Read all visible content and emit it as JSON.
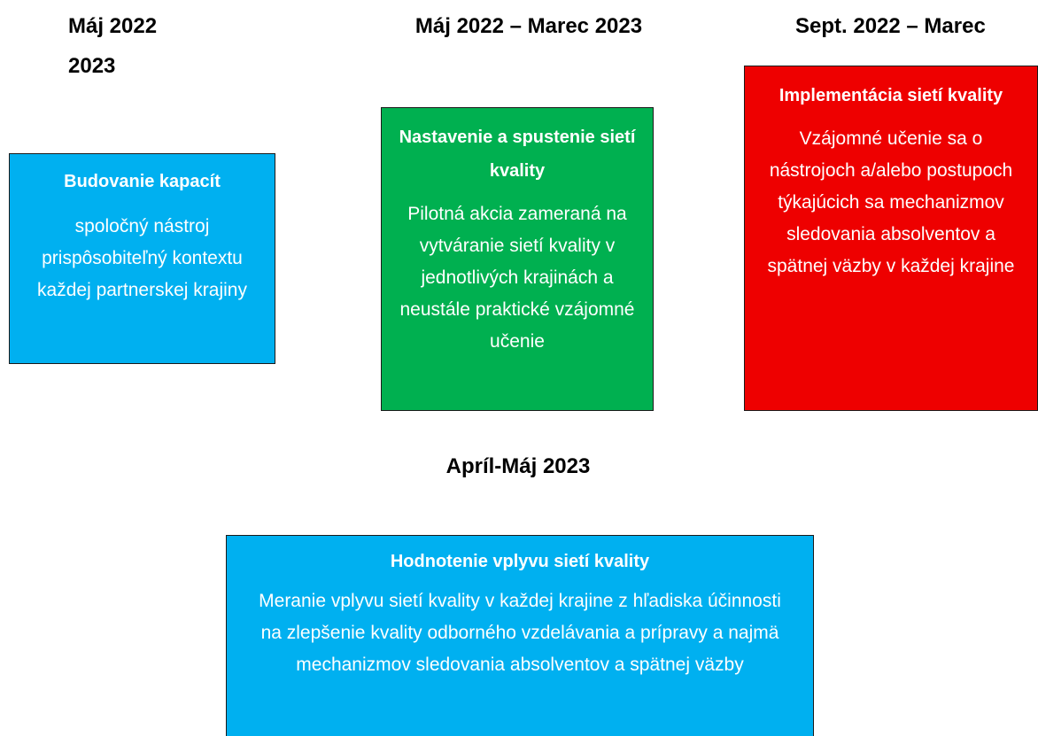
{
  "phases": [
    {
      "date_lines": [
        "Máj 2022",
        "2023"
      ],
      "title": "Budovanie kapacít",
      "description": "spoločný nástroj prispôsobiteľný kontextu každej partnerskej krajiny"
    },
    {
      "date_lines": [
        "Máj 2022 – Marec 2023"
      ],
      "title": "Nastavenie a spustenie sietí kvality",
      "description": "Pilotná akcia zameraná na vytváranie sietí kvality v jednotlivých krajinách a neustále praktické vzájomné učenie"
    },
    {
      "date_lines": [
        "Sept. 2022 – Marec"
      ],
      "title": "Implementácia sietí kvality",
      "description": "Vzájomné učenie sa o nástrojoch a/alebo postupoch týkajúcich sa mechanizmov sledovania absolventov a spätnej väzby v každej krajine"
    },
    {
      "date_lines": [
        "Apríl-Máj 2023"
      ],
      "title": "Hodnotenie vplyvu sietí kvality",
      "description": "Meranie vplyvu sietí kvality v každej krajine z hľadiska účinnosti na zlepšenie kvality odborného vzdelávania a prípravy a najmä mechanizmov sledovania absolventov a spätnej väzby"
    }
  ]
}
